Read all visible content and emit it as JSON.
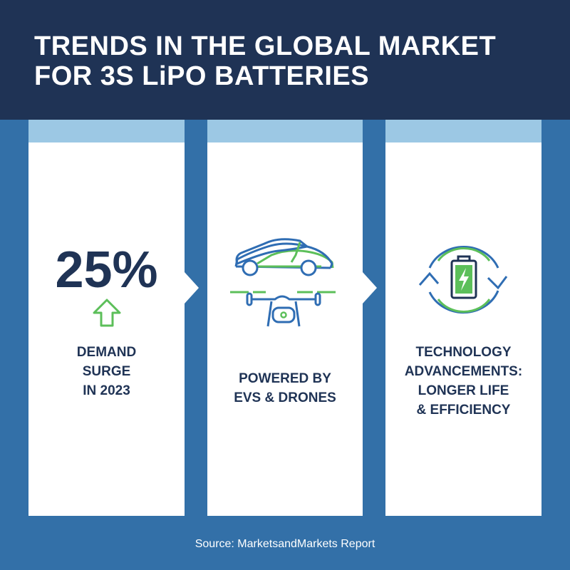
{
  "title_line1": "TRENDS IN THE GLOBAL MARKET",
  "title_line2": "FOR 3S LiPO BATTERIES",
  "columns": [
    {
      "stat": "25%",
      "icon": "arrow-up-icon",
      "lines": [
        "DEMAND",
        "SURGE",
        "IN 2023"
      ]
    },
    {
      "icon": "car-and-drone-icon",
      "lines": [
        "POWERED BY",
        "EVS & DRONES"
      ]
    },
    {
      "icon": "battery-cycle-icon",
      "lines": [
        "TECHNOLOGY",
        "ADVANCEMENTS:",
        "LONGER LIFE",
        "& EFFICIENCY"
      ]
    }
  ],
  "source": "Source: MarketsandMarkets Report",
  "colors": {
    "navy": "#1f3355",
    "blue": "#3370a8",
    "light_blue": "#9cc8e4",
    "green": "#5cbf5a",
    "icon_blue": "#2f6db3"
  }
}
